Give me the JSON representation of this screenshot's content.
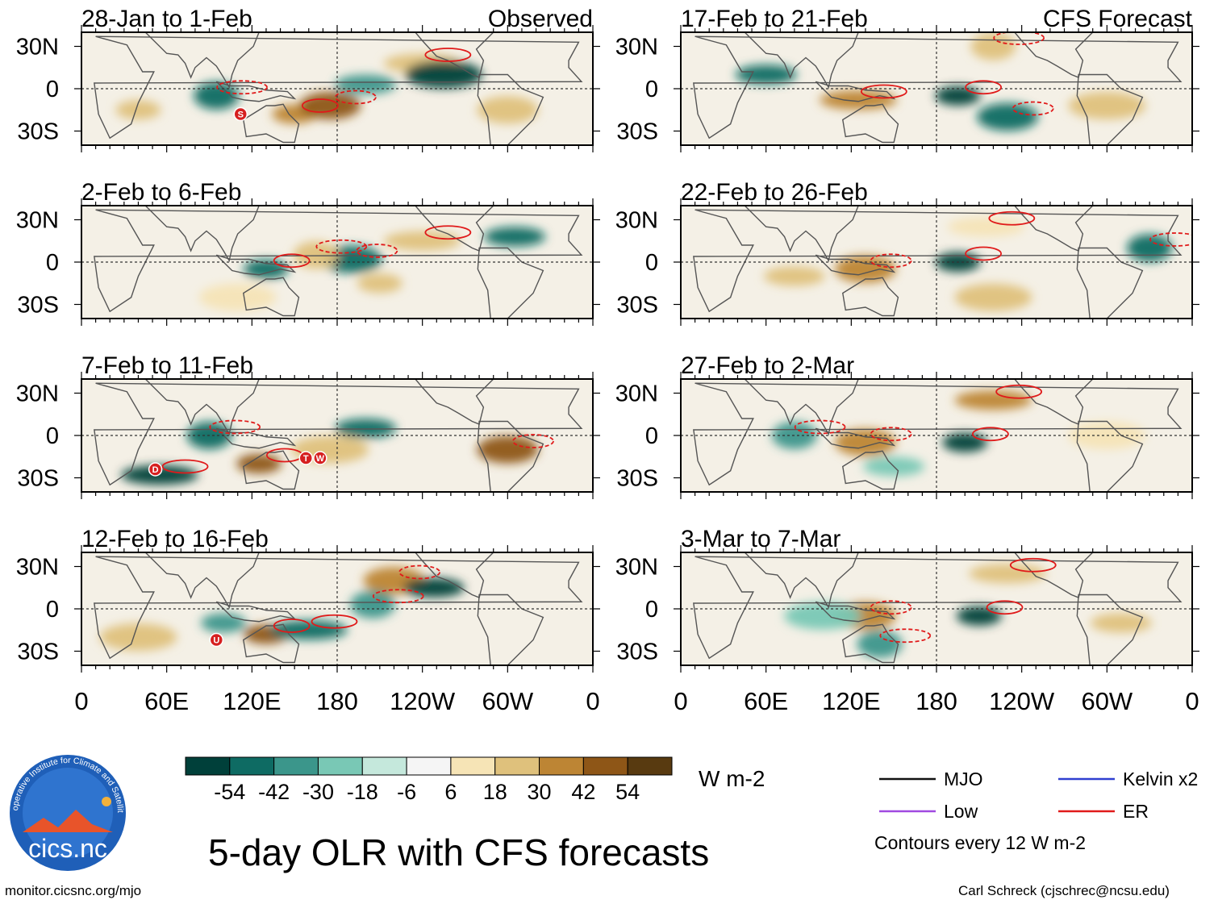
{
  "figure": {
    "title": "5-day OLR with CFS forecasts",
    "footer_left": "monitor.cicsnc.org/mjo",
    "footer_right": "Carl Schreck (cjschrec@ncsu.edu)",
    "logo_text": "cics.nc",
    "logo_ring_text": "Cooperative Institute for Climate and Satellites"
  },
  "colorbar": {
    "units": "W m-2",
    "tick_labels": [
      "-54",
      "-42",
      "-30",
      "-18",
      "-6",
      "6",
      "18",
      "30",
      "42",
      "54"
    ],
    "colors": [
      "#00403a",
      "#0e6b63",
      "#3b968b",
      "#79c8b5",
      "#c5e8dc",
      "#f5f5f5",
      "#f6e4b6",
      "#dfc17c",
      "#bd8534",
      "#8e5617",
      "#583a10"
    ]
  },
  "legend": {
    "items": [
      {
        "label": "MJO",
        "color": "#111111"
      },
      {
        "label": "Kelvin x2",
        "color": "#2f3fd0"
      },
      {
        "label": "Low",
        "color": "#a04ae0"
      },
      {
        "label": "ER",
        "color": "#e01a1a"
      }
    ],
    "contour_note": "Contours every 12 W m-2"
  },
  "axes": {
    "lat_labels": [
      "30N",
      "0",
      "30S"
    ],
    "lon_labels": [
      "0",
      "60E",
      "120E",
      "180",
      "120W",
      "60W",
      "0"
    ]
  },
  "chart_data": {
    "type": "heatmap",
    "variable": "5-day OLR anomaly",
    "units": "W m-2",
    "lon_range": [
      0,
      360
    ],
    "lat_range": [
      -40,
      40
    ],
    "panels": [
      {
        "id": "p1",
        "period": "28-Jan to 1-Feb",
        "kind": "Observed",
        "features": [
          {
            "lon": 150,
            "lat": -18,
            "value": 42
          },
          {
            "lon": 175,
            "lat": -12,
            "value": 45
          },
          {
            "lon": 240,
            "lat": 18,
            "value": 30
          },
          {
            "lon": 95,
            "lat": -5,
            "value": -42
          },
          {
            "lon": 200,
            "lat": 3,
            "value": -30
          },
          {
            "lon": 255,
            "lat": 10,
            "value": -54
          },
          {
            "lon": 40,
            "lat": -15,
            "value": 30
          },
          {
            "lon": 300,
            "lat": -15,
            "value": 30
          }
        ],
        "markers": [
          "S"
        ]
      },
      {
        "id": "p2",
        "period": "2-Feb to 6-Feb",
        "kind": "",
        "features": [
          {
            "lon": 130,
            "lat": -5,
            "value": -42
          },
          {
            "lon": 190,
            "lat": 2,
            "value": -42
          },
          {
            "lon": 240,
            "lat": 15,
            "value": 30
          },
          {
            "lon": 165,
            "lat": 5,
            "value": 30
          },
          {
            "lon": 305,
            "lat": 18,
            "value": -42
          },
          {
            "lon": 110,
            "lat": -25,
            "value": 18
          },
          {
            "lon": 210,
            "lat": -15,
            "value": 30
          }
        ],
        "markers": []
      },
      {
        "id": "p3",
        "period": "7-Feb to 11-Feb",
        "kind": "",
        "features": [
          {
            "lon": 125,
            "lat": -20,
            "value": 54
          },
          {
            "lon": 300,
            "lat": -10,
            "value": 54
          },
          {
            "lon": 55,
            "lat": -28,
            "value": -54
          },
          {
            "lon": 90,
            "lat": 0,
            "value": -42
          },
          {
            "lon": 200,
            "lat": 5,
            "value": -42
          },
          {
            "lon": 175,
            "lat": -10,
            "value": 30
          }
        ],
        "markers": [
          "D",
          "T",
          "W"
        ]
      },
      {
        "id": "p4",
        "period": "12-Feb to 16-Feb",
        "kind": "",
        "features": [
          {
            "lon": 130,
            "lat": -18,
            "value": 54
          },
          {
            "lon": 220,
            "lat": 20,
            "value": 42
          },
          {
            "lon": 160,
            "lat": -15,
            "value": -42
          },
          {
            "lon": 205,
            "lat": 3,
            "value": -30
          },
          {
            "lon": 248,
            "lat": 15,
            "value": -54
          },
          {
            "lon": 40,
            "lat": -20,
            "value": 30
          },
          {
            "lon": 100,
            "lat": -10,
            "value": -30
          }
        ],
        "markers": [
          "U"
        ]
      },
      {
        "id": "p5",
        "period": "17-Feb to 21-Feb",
        "kind": "CFS Forecast",
        "features": [
          {
            "lon": 195,
            "lat": -5,
            "value": -54
          },
          {
            "lon": 230,
            "lat": -20,
            "value": -42
          },
          {
            "lon": 125,
            "lat": -8,
            "value": 42
          },
          {
            "lon": 220,
            "lat": 30,
            "value": 30
          },
          {
            "lon": 60,
            "lat": 10,
            "value": -42
          },
          {
            "lon": 300,
            "lat": -12,
            "value": 30
          }
        ],
        "markers": []
      },
      {
        "id": "p6",
        "period": "22-Feb to 26-Feb",
        "kind": "",
        "features": [
          {
            "lon": 195,
            "lat": 0,
            "value": -54
          },
          {
            "lon": 130,
            "lat": -5,
            "value": 42
          },
          {
            "lon": 215,
            "lat": 25,
            "value": 18
          },
          {
            "lon": 330,
            "lat": 10,
            "value": -42
          },
          {
            "lon": 80,
            "lat": -10,
            "value": 30
          },
          {
            "lon": 220,
            "lat": -25,
            "value": 30
          }
        ],
        "markers": []
      },
      {
        "id": "p7",
        "period": "27-Feb to 2-Mar",
        "kind": "",
        "features": [
          {
            "lon": 200,
            "lat": -5,
            "value": -54
          },
          {
            "lon": 130,
            "lat": -5,
            "value": 42
          },
          {
            "lon": 220,
            "lat": 25,
            "value": 42
          },
          {
            "lon": 80,
            "lat": 0,
            "value": -30
          },
          {
            "lon": 150,
            "lat": -22,
            "value": -18
          },
          {
            "lon": 300,
            "lat": 0,
            "value": 18
          }
        ],
        "markers": []
      },
      {
        "id": "p8",
        "period": "3-Mar to 7-Mar",
        "kind": "",
        "features": [
          {
            "lon": 210,
            "lat": -5,
            "value": -54
          },
          {
            "lon": 130,
            "lat": -5,
            "value": 42
          },
          {
            "lon": 230,
            "lat": 25,
            "value": 30
          },
          {
            "lon": 140,
            "lat": -25,
            "value": -30
          },
          {
            "lon": 310,
            "lat": -10,
            "value": 30
          },
          {
            "lon": 100,
            "lat": -5,
            "value": -18
          }
        ],
        "markers": []
      }
    ]
  }
}
